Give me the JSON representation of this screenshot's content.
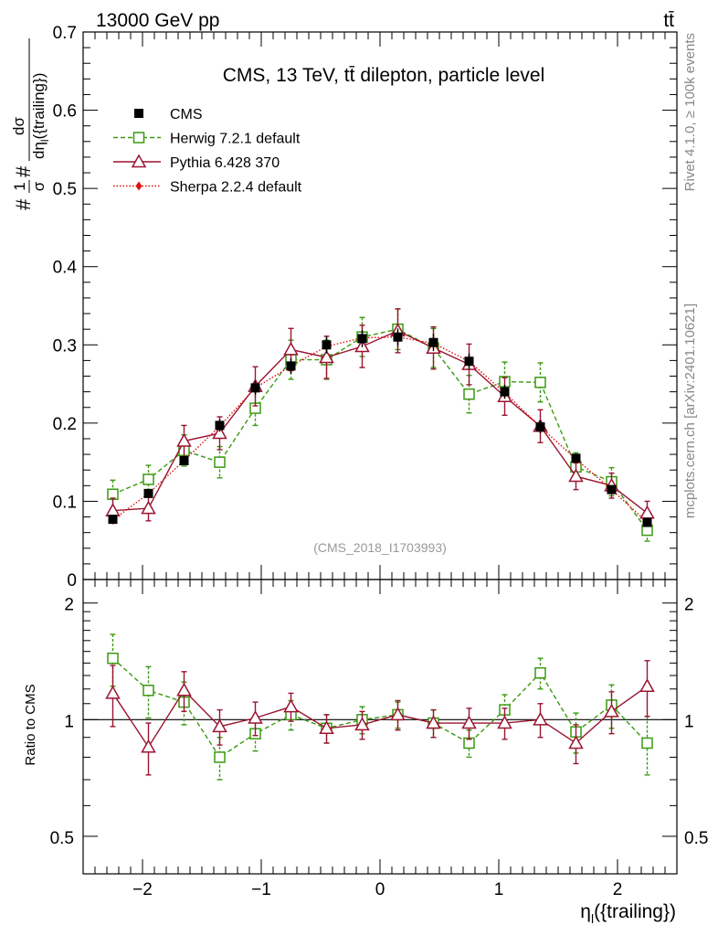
{
  "header": {
    "left_label": "13000 GeV pp",
    "right_label": "tt̄"
  },
  "side_labels": {
    "rivet": "Rivet 4.1.0, ≥ 100k events",
    "mcplots": "mcplots.cern.ch [arXiv:2401.10621]"
  },
  "colors": {
    "cms": "#000000",
    "herwig": "#3a9a10",
    "pythia": "#9a1430",
    "sherpa": "#e01010",
    "watermark": "#999999"
  },
  "chart_data": [
    {
      "type": "scatter",
      "panel": "main",
      "title": "CMS, 13 TeV, tt̄ dilepton, particle level",
      "watermark": "(CMS_2018_I1703993)",
      "ylabel": "#1/σ#dσ/dη_l({trailing})",
      "ylabel_parts": {
        "lead": "#",
        "one": "1",
        "sigma": "σ",
        "mid": "#",
        "num": "dσ",
        "den_prefix": "dη",
        "den_sub": "l",
        "den_suffix": "({trailing})"
      },
      "xlim": [
        -2.5,
        2.5
      ],
      "ylim": [
        0,
        0.7
      ],
      "yticks": [
        0,
        0.1,
        0.2,
        0.3,
        0.4,
        0.5,
        0.6,
        0.7
      ],
      "ytick_labels": [
        "0",
        "0.1",
        "0.2",
        "0.3",
        "0.4",
        "0.5",
        "0.6",
        "0.7"
      ],
      "x": [
        -2.25,
        -1.95,
        -1.65,
        -1.35,
        -1.05,
        -0.75,
        -0.45,
        -0.15,
        0.15,
        0.45,
        0.75,
        1.05,
        1.35,
        1.65,
        1.95,
        2.25
      ],
      "legend": {
        "position": "top-left",
        "entries": [
          {
            "label": "CMS",
            "marker": "filled-square",
            "line": "none"
          },
          {
            "label": "Herwig 7.2.1 default",
            "marker": "open-square",
            "line": "dashed"
          },
          {
            "label": "Pythia 6.428 370",
            "marker": "open-triangle",
            "line": "solid"
          },
          {
            "label": "Sherpa 2.2.4 default",
            "marker": "filled-diamond",
            "line": "dotted"
          }
        ]
      },
      "series": [
        {
          "name": "CMS",
          "values": [
            0.077,
            0.11,
            0.152,
            0.197,
            0.245,
            0.273,
            0.3,
            0.308,
            0.31,
            0.303,
            0.279,
            0.24,
            0.195,
            0.155,
            0.115,
            0.073
          ],
          "errors": [
            0.004,
            0.005,
            0.006,
            0.008,
            0.009,
            0.01,
            0.011,
            0.011,
            0.011,
            0.011,
            0.01,
            0.009,
            0.008,
            0.006,
            0.005,
            0.004
          ]
        },
        {
          "name": "Herwig 7.2.1 default",
          "values": [
            0.109,
            0.128,
            0.165,
            0.15,
            0.219,
            0.281,
            0.281,
            0.31,
            0.32,
            0.296,
            0.237,
            0.253,
            0.252,
            0.144,
            0.125,
            0.063
          ],
          "errors": [
            0.018,
            0.018,
            0.02,
            0.02,
            0.022,
            0.025,
            0.025,
            0.025,
            0.026,
            0.025,
            0.024,
            0.025,
            0.025,
            0.018,
            0.018,
            0.014
          ]
        },
        {
          "name": "Pythia 6.428 370",
          "values": [
            0.088,
            0.091,
            0.177,
            0.187,
            0.247,
            0.294,
            0.284,
            0.298,
            0.318,
            0.296,
            0.275,
            0.234,
            0.196,
            0.132,
            0.12,
            0.085
          ],
          "errors": [
            0.016,
            0.016,
            0.02,
            0.021,
            0.025,
            0.027,
            0.027,
            0.027,
            0.028,
            0.027,
            0.026,
            0.024,
            0.021,
            0.017,
            0.016,
            0.015
          ]
        },
        {
          "name": "Sherpa 2.2.4 default",
          "values": [
            0.076,
            0.11,
            0.152,
            0.196,
            0.245,
            0.273,
            0.298,
            0.309,
            0.31,
            0.302,
            0.279,
            0.239,
            0.195,
            0.154,
            0.115,
            0.073
          ],
          "errors": [
            0.003,
            0.004,
            0.005,
            0.006,
            0.007,
            0.008,
            0.008,
            0.008,
            0.008,
            0.008,
            0.008,
            0.007,
            0.006,
            0.005,
            0.004,
            0.003
          ]
        }
      ]
    },
    {
      "type": "scatter",
      "panel": "ratio",
      "ylabel": "Ratio to CMS",
      "xlabel": "η_l({trailing})",
      "xlabel_parts": {
        "main": "η",
        "sub": "l",
        "suffix": "({trailing})"
      },
      "xlim": [
        -2.5,
        2.5
      ],
      "xticks": [
        -2,
        -1,
        0,
        1,
        2
      ],
      "xtick_labels": [
        "−2",
        "−1",
        "0",
        "1",
        "2"
      ],
      "ylim": [
        0.4,
        2.3
      ],
      "yscale": "log",
      "yticks": [
        0.5,
        1,
        2
      ],
      "ytick_labels": [
        "0.5",
        "1",
        "2"
      ],
      "reference_line": 1,
      "x": [
        -2.25,
        -1.95,
        -1.65,
        -1.35,
        -1.05,
        -0.75,
        -0.45,
        -0.15,
        0.15,
        0.45,
        0.75,
        1.05,
        1.35,
        1.65,
        1.95,
        2.25
      ],
      "series": [
        {
          "name": "Herwig 7.2.1 default",
          "values": [
            1.44,
            1.19,
            1.11,
            0.8,
            0.92,
            1.03,
            0.95,
            1.0,
            1.03,
            0.98,
            0.87,
            1.06,
            1.32,
            0.93,
            1.09,
            0.87
          ],
          "errors": [
            0.22,
            0.18,
            0.14,
            0.1,
            0.09,
            0.09,
            0.08,
            0.08,
            0.08,
            0.08,
            0.07,
            0.1,
            0.12,
            0.11,
            0.14,
            0.15
          ]
        },
        {
          "name": "Pythia 6.428 370",
          "values": [
            1.17,
            0.85,
            1.19,
            0.96,
            1.01,
            1.08,
            0.95,
            0.97,
            1.03,
            0.98,
            0.98,
            0.98,
            1.0,
            0.87,
            1.05,
            1.22
          ],
          "errors": [
            0.21,
            0.13,
            0.14,
            0.1,
            0.1,
            0.09,
            0.08,
            0.08,
            0.09,
            0.08,
            0.09,
            0.09,
            0.1,
            0.1,
            0.13,
            0.2
          ]
        }
      ]
    }
  ]
}
